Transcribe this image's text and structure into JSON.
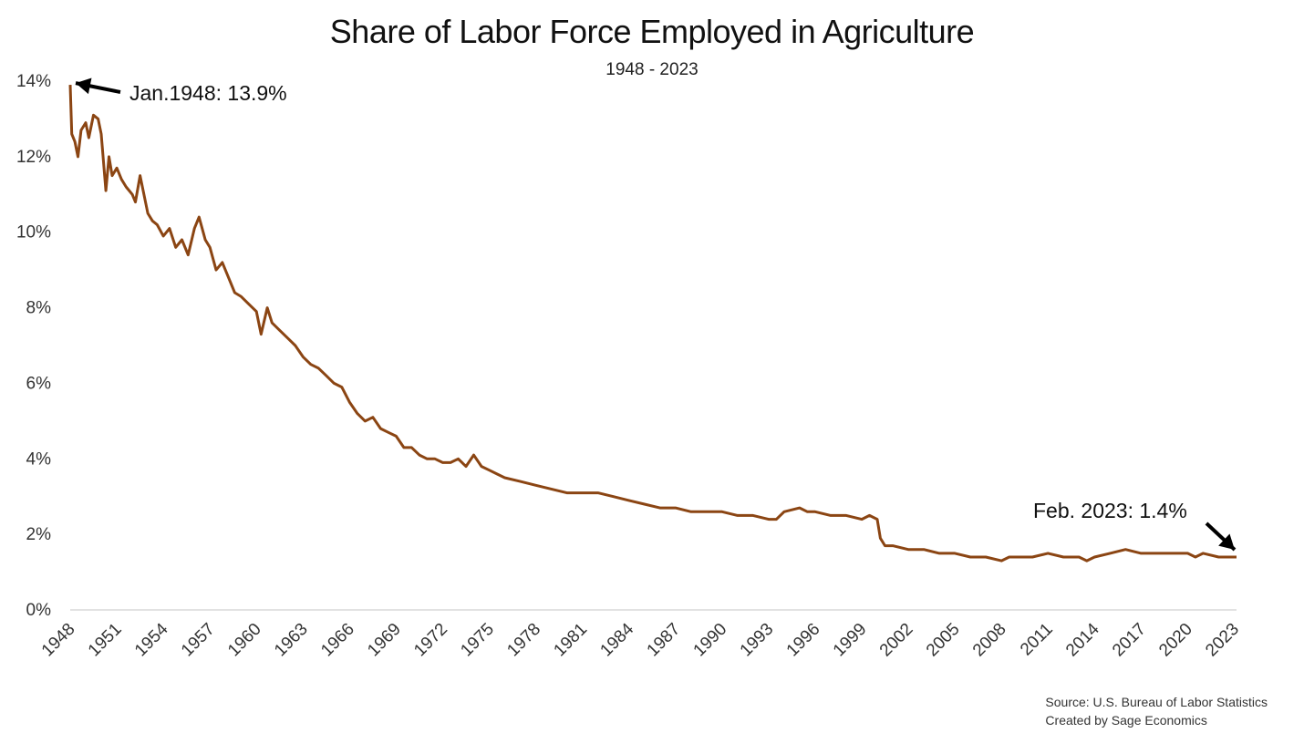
{
  "chart_data": {
    "type": "line",
    "title": "Share of Labor Force Employed in Agriculture",
    "subtitle": "1948 - 2023",
    "ylim": [
      0,
      14
    ],
    "xlim": [
      1948,
      2023.15
    ],
    "yticks": [
      0,
      2,
      4,
      6,
      8,
      10,
      12,
      14
    ],
    "ytick_labels": [
      "0%",
      "2%",
      "4%",
      "6%",
      "8%",
      "10%",
      "12%",
      "14%"
    ],
    "xticks": [
      1948,
      1951,
      1954,
      1957,
      1960,
      1963,
      1966,
      1969,
      1972,
      1975,
      1978,
      1981,
      1984,
      1987,
      1990,
      1993,
      1996,
      1999,
      2002,
      2005,
      2008,
      2011,
      2014,
      2017,
      2020,
      2023
    ],
    "xtick_labels": [
      "1948",
      "1951",
      "1954",
      "1957",
      "1960",
      "1963",
      "1966",
      "1969",
      "1972",
      "1975",
      "1978",
      "1981",
      "1984",
      "1987",
      "1990",
      "1993",
      "1996",
      "1999",
      "2002",
      "2005",
      "2008",
      "2011",
      "2014",
      "2017",
      "2020",
      "2023"
    ],
    "grid": false,
    "line_color": "#8B4513",
    "series": [
      {
        "name": "",
        "x": [
          1948.0,
          1948.1,
          1948.3,
          1948.5,
          1948.7,
          1949.0,
          1949.2,
          1949.5,
          1949.8,
          1950.0,
          1950.3,
          1950.5,
          1950.7,
          1951.0,
          1951.3,
          1951.6,
          1952.0,
          1952.2,
          1952.5,
          1953.0,
          1953.3,
          1953.6,
          1954.0,
          1954.4,
          1954.8,
          1955.2,
          1955.6,
          1956.0,
          1956.3,
          1956.7,
          1957.0,
          1957.4,
          1957.8,
          1958.2,
          1958.6,
          1959.0,
          1959.5,
          1960.0,
          1960.3,
          1960.7,
          1961.0,
          1961.5,
          1962.0,
          1962.5,
          1963.0,
          1963.5,
          1964.0,
          1964.5,
          1965.0,
          1965.5,
          1966.0,
          1966.5,
          1967.0,
          1967.5,
          1968.0,
          1968.5,
          1969.0,
          1969.5,
          1970.0,
          1970.5,
          1971.0,
          1971.5,
          1972.0,
          1972.5,
          1973.0,
          1973.5,
          1974.0,
          1974.5,
          1975.0,
          1975.5,
          1976.0,
          1977.0,
          1978.0,
          1979.0,
          1980.0,
          1981.0,
          1982.0,
          1983.0,
          1984.0,
          1985.0,
          1986.0,
          1987.0,
          1988.0,
          1989.0,
          1990.0,
          1991.0,
          1992.0,
          1993.0,
          1993.5,
          1994.0,
          1995.0,
          1995.5,
          1996.0,
          1997.0,
          1998.0,
          1999.0,
          1999.5,
          2000.0,
          2000.2,
          2000.5,
          2001.0,
          2002.0,
          2003.0,
          2004.0,
          2005.0,
          2006.0,
          2007.0,
          2008.0,
          2008.5,
          2009.0,
          2010.0,
          2011.0,
          2012.0,
          2013.0,
          2013.5,
          2014.0,
          2015.0,
          2016.0,
          2017.0,
          2018.0,
          2019.0,
          2020.0,
          2020.5,
          2021.0,
          2022.0,
          2022.5,
          2023.0,
          2023.15
        ],
        "values": [
          13.9,
          12.6,
          12.4,
          12.0,
          12.7,
          12.9,
          12.5,
          13.1,
          13.0,
          12.6,
          11.1,
          12.0,
          11.5,
          11.7,
          11.4,
          11.2,
          11.0,
          10.8,
          11.5,
          10.5,
          10.3,
          10.2,
          9.9,
          10.1,
          9.6,
          9.8,
          9.4,
          10.1,
          10.4,
          9.8,
          9.6,
          9.0,
          9.2,
          8.8,
          8.4,
          8.3,
          8.1,
          7.9,
          7.3,
          8.0,
          7.6,
          7.4,
          7.2,
          7.0,
          6.7,
          6.5,
          6.4,
          6.2,
          6.0,
          5.9,
          5.5,
          5.2,
          5.0,
          5.1,
          4.8,
          4.7,
          4.6,
          4.3,
          4.3,
          4.1,
          4.0,
          4.0,
          3.9,
          3.9,
          4.0,
          3.8,
          4.1,
          3.8,
          3.7,
          3.6,
          3.5,
          3.4,
          3.3,
          3.2,
          3.1,
          3.1,
          3.1,
          3.0,
          2.9,
          2.8,
          2.7,
          2.7,
          2.6,
          2.6,
          2.6,
          2.5,
          2.5,
          2.4,
          2.4,
          2.6,
          2.7,
          2.6,
          2.6,
          2.5,
          2.5,
          2.4,
          2.5,
          2.4,
          1.9,
          1.7,
          1.7,
          1.6,
          1.6,
          1.5,
          1.5,
          1.4,
          1.4,
          1.3,
          1.4,
          1.4,
          1.4,
          1.5,
          1.4,
          1.4,
          1.3,
          1.4,
          1.5,
          1.6,
          1.5,
          1.5,
          1.5,
          1.5,
          1.4,
          1.5,
          1.4,
          1.4,
          1.4,
          1.4
        ]
      }
    ],
    "annotations": [
      {
        "text": "Jan.1948: 13.9%",
        "x": 1948.0,
        "y": 13.9
      },
      {
        "text": "Feb. 2023: 1.4%",
        "x": 2023.15,
        "y": 1.4
      }
    ]
  },
  "source_line1": "Source: U.S. Bureau of Labor Statistics",
  "source_line2": "Created by Sage Economics"
}
